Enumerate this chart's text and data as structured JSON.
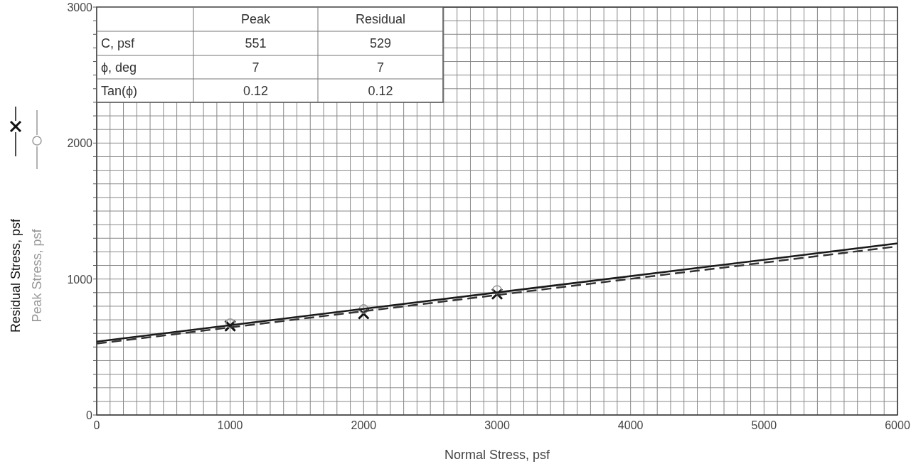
{
  "chart_data": {
    "type": "scatter",
    "xlabel": "Normal Stress, psf",
    "xlim": [
      0,
      6000
    ],
    "ylim": [
      0,
      3000
    ],
    "xticks": [
      0,
      {
        "value": 100,
        "label": null
      },
      {
        "value": 200,
        "label": null
      },
      {
        "value": 300,
        "label": null
      },
      {
        "value": 400,
        "label": null
      },
      {
        "value": 500,
        "label": null
      },
      {
        "value": 600,
        "label": null
      },
      {
        "value": 700,
        "label": null
      },
      {
        "value": 800,
        "label": null
      },
      {
        "value": 900,
        "label": null
      },
      1000,
      {
        "value": 1100,
        "label": null
      },
      {
        "value": 1200,
        "label": null
      },
      {
        "value": 1300,
        "label": null
      },
      {
        "value": 1400,
        "label": null
      },
      {
        "value": 1500,
        "label": null
      },
      {
        "value": 1600,
        "label": null
      },
      {
        "value": 1700,
        "label": null
      },
      {
        "value": 1800,
        "label": null
      },
      {
        "value": 1900,
        "label": null
      },
      2000,
      {
        "value": 2100,
        "label": null
      },
      {
        "value": 2200,
        "label": null
      },
      {
        "value": 2300,
        "label": null
      },
      {
        "value": 2400,
        "label": null
      },
      {
        "value": 2500,
        "label": null
      },
      {
        "value": 2600,
        "label": null
      },
      {
        "value": 2700,
        "label": null
      },
      {
        "value": 2800,
        "label": null
      },
      {
        "value": 2900,
        "label": null
      },
      3000,
      {
        "value": 3100,
        "label": null
      },
      {
        "value": 3200,
        "label": null
      },
      {
        "value": 3300,
        "label": null
      },
      {
        "value": 3400,
        "label": null
      },
      {
        "value": 3500,
        "label": null
      },
      {
        "value": 3600,
        "label": null
      },
      {
        "value": 3700,
        "label": null
      },
      {
        "value": 3800,
        "label": null
      },
      {
        "value": 3900,
        "label": null
      },
      4000,
      {
        "value": 4100,
        "label": null
      },
      {
        "value": 4200,
        "label": null
      },
      {
        "value": 4300,
        "label": null
      },
      {
        "value": 4400,
        "label": null
      },
      {
        "value": 4500,
        "label": null
      },
      {
        "value": 4600,
        "label": null
      },
      {
        "value": 4700,
        "label": null
      },
      {
        "value": 4800,
        "label": null
      },
      {
        "value": 4900,
        "label": null
      },
      5000,
      {
        "value": 5100,
        "label": null
      },
      {
        "value": 5200,
        "label": null
      },
      {
        "value": 5300,
        "label": null
      },
      {
        "value": 5400,
        "label": null
      },
      {
        "value": 5500,
        "label": null
      },
      {
        "value": 5600,
        "label": null
      },
      {
        "value": 5700,
        "label": null
      },
      {
        "value": 5800,
        "label": null
      },
      {
        "value": 5900,
        "label": null
      },
      6000
    ],
    "yticks": [
      0,
      {
        "value": 100,
        "label": null
      },
      {
        "value": 200,
        "label": null
      },
      {
        "value": 300,
        "label": null
      },
      {
        "value": 400,
        "label": null
      },
      {
        "value": 500,
        "label": null
      },
      {
        "value": 600,
        "label": null
      },
      {
        "value": 700,
        "label": null
      },
      {
        "value": 800,
        "label": null
      },
      {
        "value": 900,
        "label": null
      },
      1000,
      {
        "value": 1100,
        "label": null
      },
      {
        "value": 1200,
        "label": null
      },
      {
        "value": 1300,
        "label": null
      },
      {
        "value": 1400,
        "label": null
      },
      {
        "value": 1500,
        "label": null
      },
      {
        "value": 1600,
        "label": null
      },
      {
        "value": 1700,
        "label": null
      },
      {
        "value": 1800,
        "label": null
      },
      {
        "value": 1900,
        "label": null
      },
      2000,
      {
        "value": 2100,
        "label": null
      },
      {
        "value": 2200,
        "label": null
      },
      {
        "value": 2300,
        "label": null
      },
      {
        "value": 2400,
        "label": null
      },
      {
        "value": 2500,
        "label": null
      },
      {
        "value": 2600,
        "label": null
      },
      {
        "value": 2700,
        "label": null
      },
      {
        "value": 2800,
        "label": null
      },
      {
        "value": 2900,
        "label": null
      },
      3000
    ],
    "grid": true,
    "legend": "left",
    "annotations": [
      "Peak",
      "Residual",
      "C, psf",
      "551",
      "529",
      "ϕ, deg",
      "7",
      "7",
      "Tan(ϕ)",
      "0.12",
      "0.12"
    ],
    "series": [
      {
        "name": "Residual Stress, psf",
        "marker": "cross",
        "color": "#111111",
        "x": [
          1000,
          2000,
          3000
        ],
        "values": [
          655,
          745,
          890
        ]
      },
      {
        "name": "Peak Stress, psf",
        "marker": "circle",
        "color": "#999999",
        "x": [
          1000,
          2000,
          3000
        ],
        "values": [
          675,
          780,
          920
        ]
      },
      {
        "type": "line",
        "line_style": "solid",
        "color": "#1a1a1a",
        "x": [
          0,
          6000
        ],
        "values": [
          540,
          1262
        ]
      },
      {
        "type": "line",
        "line_style": "dashed",
        "color": "#333333",
        "x": [
          0,
          6000
        ],
        "values": [
          525,
          1240
        ]
      }
    ]
  }
}
